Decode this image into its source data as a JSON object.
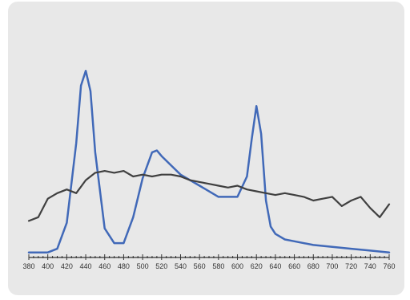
{
  "colors": {
    "background": "#e8e8e8",
    "series_a": "#4169b8",
    "series_b": "#404040",
    "axis": "#333333"
  },
  "chart_data": {
    "type": "line",
    "xlim": [
      380,
      760
    ],
    "ylim": [
      0,
      1
    ],
    "xticks": [
      380,
      400,
      420,
      440,
      460,
      480,
      500,
      520,
      540,
      560,
      580,
      600,
      620,
      640,
      660,
      680,
      700,
      720,
      740,
      760
    ],
    "grid": false,
    "legend": "none",
    "series": [
      {
        "color": "#4169b8",
        "x": [
          380,
          400,
          410,
          420,
          430,
          435,
          440,
          445,
          450,
          460,
          470,
          480,
          490,
          500,
          510,
          515,
          520,
          530,
          540,
          560,
          580,
          600,
          610,
          615,
          620,
          625,
          630,
          635,
          640,
          650,
          660,
          680,
          700,
          720,
          740,
          760
        ],
        "y": [
          0.01,
          0.01,
          0.03,
          0.17,
          0.6,
          0.91,
          0.99,
          0.88,
          0.55,
          0.14,
          0.06,
          0.06,
          0.2,
          0.41,
          0.55,
          0.56,
          0.53,
          0.48,
          0.43,
          0.37,
          0.31,
          0.31,
          0.42,
          0.62,
          0.8,
          0.65,
          0.29,
          0.15,
          0.11,
          0.08,
          0.07,
          0.05,
          0.04,
          0.03,
          0.02,
          0.01
        ]
      },
      {
        "color": "#404040",
        "x": [
          380,
          390,
          400,
          410,
          420,
          430,
          440,
          450,
          460,
          470,
          480,
          490,
          500,
          510,
          520,
          530,
          540,
          550,
          560,
          570,
          580,
          590,
          600,
          610,
          620,
          630,
          640,
          650,
          660,
          670,
          680,
          690,
          700,
          710,
          720,
          730,
          740,
          750,
          760
        ],
        "y": [
          0.18,
          0.2,
          0.3,
          0.33,
          0.35,
          0.33,
          0.4,
          0.44,
          0.45,
          0.44,
          0.45,
          0.42,
          0.43,
          0.42,
          0.43,
          0.43,
          0.42,
          0.4,
          0.39,
          0.38,
          0.37,
          0.36,
          0.37,
          0.35,
          0.34,
          0.33,
          0.32,
          0.33,
          0.32,
          0.31,
          0.29,
          0.3,
          0.31,
          0.26,
          0.29,
          0.31,
          0.25,
          0.2,
          0.27
        ]
      }
    ]
  }
}
